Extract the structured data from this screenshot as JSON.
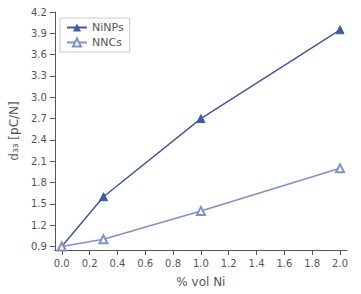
{
  "chart_data": {
    "type": "line",
    "xlabel": "% vol Ni",
    "ylabel": "d₃₃ [pC/N]",
    "series": [
      {
        "name": "NiNPs",
        "color": "#4059a0",
        "marker": "triangle",
        "x": [
          0.0,
          0.3,
          1.0,
          2.0
        ],
        "values": [
          0.9,
          1.6,
          2.7,
          3.95
        ]
      },
      {
        "name": "NNCs",
        "color": "#8090c8",
        "marker": "open_triangle",
        "x": [
          0.0,
          0.3,
          1.0,
          2.0
        ],
        "values": [
          0.9,
          1.0,
          1.4,
          2.0
        ]
      }
    ],
    "xlim": [
      -0.05,
      2.05
    ],
    "ylim": [
      0.85,
      4.2
    ],
    "xticks": [
      {
        "value": 0.0,
        "label": "0.0"
      },
      0.2,
      0.4,
      0.6,
      0.8,
      {
        "value": 1.0,
        "label": "1.0"
      },
      1.2,
      1.4,
      1.6,
      1.8,
      {
        "value": 2.0,
        "label": "2.0"
      }
    ],
    "yticks": [
      0.9,
      1.2,
      1.5,
      1.8,
      2.1,
      2.4,
      2.7,
      {
        "value": 3.0,
        "label": "3.0"
      },
      3.3,
      3.6,
      3.9,
      4.2
    ],
    "grid": false,
    "legend": "upper left"
  }
}
